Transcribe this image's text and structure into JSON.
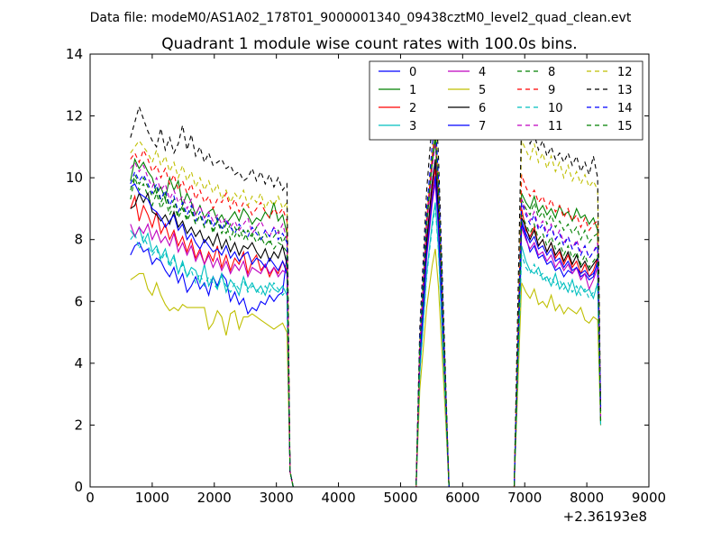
{
  "header": {
    "suptitle": "Data file: modeM0/AS1A02_178T01_9000001340_09438cztM0_level2_quad_clean.evt"
  },
  "chart_data": {
    "type": "line",
    "title": "Quadrant 1 module wise count rates with 100.0s bins.",
    "xlabel": "",
    "ylabel": "",
    "x_offset_label": "+2.36193e8",
    "xlim": [
      0,
      9000
    ],
    "ylim": [
      0,
      14
    ],
    "x_ticks": [
      0,
      1000,
      2000,
      3000,
      4000,
      5000,
      6000,
      7000,
      8000,
      9000
    ],
    "y_ticks": [
      0,
      2,
      4,
      6,
      8,
      10,
      12,
      14
    ],
    "x_tick_labels": [
      "0",
      "1000",
      "2000",
      "3000",
      "4000",
      "5000",
      "6000",
      "7000",
      "8000",
      "9000"
    ],
    "y_tick_labels": [
      "0",
      "2",
      "4",
      "6",
      "8",
      "10",
      "12",
      "14"
    ],
    "grid": false,
    "legend_position": "top-right",
    "legend_columns": 4,
    "series": [
      {
        "name": "0",
        "color": "#0000ff",
        "dash": "solid",
        "seg1": [
          7.5,
          7.8,
          7.9,
          7.6,
          7.7,
          7.2,
          7.4,
          7.3,
          7.0,
          6.8,
          7.1,
          6.6,
          6.9,
          6.3,
          6.5,
          6.8,
          6.4,
          6.6,
          6.2,
          6.8,
          6.5,
          6.9,
          6.7,
          6.0,
          6.3,
          5.9,
          6.1,
          5.6,
          5.8,
          5.7,
          6.0,
          5.9,
          6.2,
          6.0,
          6.2,
          6.3,
          7.5
        ],
        "peak": 10.4,
        "seg2": [
          8.5,
          8.1,
          7.6,
          7.8,
          7.4,
          7.5,
          7.2,
          7.3,
          7.0,
          7.1,
          6.8,
          7.0,
          6.9,
          7.1,
          6.8,
          6.9,
          6.7,
          6.8,
          7.3
        ]
      },
      {
        "name": "1",
        "color": "#008000",
        "dash": "solid",
        "seg1": [
          9.9,
          10.6,
          10.3,
          10.5,
          10.2,
          10.0,
          9.5,
          9.7,
          9.3,
          10.0,
          9.6,
          9.9,
          9.1,
          9.5,
          9.2,
          8.8,
          9.1,
          8.7,
          8.9,
          9.0,
          8.6,
          8.8,
          8.5,
          8.7,
          8.9,
          8.6,
          9.0,
          8.8,
          8.5,
          8.7,
          8.6,
          8.9,
          8.7,
          9.2,
          8.6,
          8.8,
          8.2
        ],
        "peak": 11.2,
        "seg2": [
          9.5,
          9.2,
          9.0,
          9.4,
          8.9,
          9.1,
          8.8,
          9.0,
          8.7,
          9.1,
          8.8,
          8.9,
          8.6,
          9.0,
          8.7,
          8.8,
          8.5,
          8.7,
          8.3
        ]
      },
      {
        "name": "2",
        "color": "#ff0000",
        "dash": "solid",
        "seg1": [
          9.0,
          9.4,
          8.6,
          9.1,
          8.8,
          8.4,
          8.9,
          8.2,
          8.5,
          8.0,
          8.3,
          7.8,
          8.1,
          7.6,
          8.0,
          7.4,
          7.7,
          7.2,
          7.6,
          7.3,
          7.8,
          7.1,
          7.5,
          7.0,
          7.4,
          7.2,
          7.6,
          6.9,
          7.3,
          7.5,
          7.0,
          7.2,
          6.8,
          7.1,
          6.9,
          7.3,
          7.0
        ],
        "peak": 10.2,
        "seg2": [
          9.0,
          8.3,
          8.1,
          8.4,
          7.8,
          8.0,
          7.6,
          7.9,
          7.4,
          7.6,
          7.2,
          7.5,
          7.1,
          7.3,
          6.9,
          7.2,
          6.8,
          7.0,
          7.4
        ]
      },
      {
        "name": "3",
        "color": "#00bfbf",
        "dash": "solid",
        "seg1": [
          8.3,
          8.1,
          8.4,
          7.9,
          8.2,
          7.6,
          7.8,
          7.4,
          7.7,
          7.2,
          7.5,
          6.9,
          7.3,
          6.8,
          7.1,
          7.0,
          6.6,
          7.2,
          6.5,
          6.8,
          6.4,
          6.9,
          6.3,
          6.7,
          6.5,
          6.2,
          6.8,
          6.4,
          6.6,
          6.3,
          6.5,
          6.2,
          6.6,
          6.4,
          6.3,
          6.5,
          6.2
        ],
        "peak": 9.2,
        "seg2": [
          7.8,
          7.3,
          7.0,
          6.9,
          7.1,
          6.7,
          6.8,
          6.5,
          6.9,
          6.4,
          6.6,
          6.3,
          6.7,
          6.2,
          6.5,
          6.3,
          6.4,
          6.1,
          6.6
        ]
      },
      {
        "name": "4",
        "color": "#bf00bf",
        "dash": "solid",
        "seg1": [
          8.5,
          8.1,
          8.4,
          8.2,
          8.5,
          8.0,
          8.3,
          7.9,
          8.1,
          7.8,
          8.2,
          7.6,
          7.9,
          7.5,
          7.8,
          7.3,
          7.6,
          7.2,
          7.5,
          7.1,
          7.4,
          7.0,
          7.3,
          6.9,
          7.2,
          7.0,
          7.3,
          6.8,
          7.1,
          7.0,
          6.9,
          7.2,
          6.9,
          7.1,
          6.8,
          7.0,
          6.9
        ],
        "peak": 9.8,
        "seg2": [
          8.4,
          8.0,
          7.7,
          7.9,
          7.5,
          7.6,
          7.3,
          7.5,
          7.1,
          7.3,
          7.0,
          7.2,
          6.9,
          7.1,
          6.7,
          6.9,
          6.4,
          6.7,
          7.1
        ]
      },
      {
        "name": "5",
        "color": "#bfbf00",
        "dash": "solid",
        "seg1": [
          6.7,
          6.8,
          6.9,
          6.9,
          6.4,
          6.2,
          6.6,
          6.2,
          5.9,
          5.7,
          5.8,
          5.7,
          5.9,
          5.8,
          5.8,
          5.8,
          5.8,
          5.8,
          5.1,
          5.3,
          5.7,
          5.5,
          4.9,
          5.6,
          5.7,
          5.1,
          5.5,
          5.5,
          5.6,
          5.5,
          5.4,
          5.3,
          5.2,
          5.1,
          5.2,
          5.3,
          5.0
        ],
        "peak": 7.6,
        "seg2": [
          6.6,
          6.3,
          6.1,
          6.4,
          5.9,
          6.0,
          5.8,
          6.2,
          5.7,
          5.9,
          5.6,
          5.8,
          5.7,
          5.6,
          5.8,
          5.4,
          5.3,
          5.5,
          5.4
        ]
      },
      {
        "name": "6",
        "color": "#000000",
        "dash": "solid",
        "seg1": [
          9.0,
          9.1,
          9.5,
          9.2,
          9.5,
          8.9,
          8.8,
          8.6,
          8.8,
          8.5,
          8.9,
          8.4,
          8.6,
          8.2,
          8.4,
          8.1,
          8.3,
          7.9,
          8.1,
          7.8,
          8.2,
          7.7,
          8.0,
          7.6,
          7.9,
          7.5,
          7.8,
          7.7,
          7.9,
          7.6,
          7.4,
          7.7,
          7.3,
          7.6,
          7.4,
          7.8,
          7.2
        ],
        "peak": 10.6,
        "seg2": [
          8.7,
          8.4,
          8.0,
          8.3,
          7.8,
          8.0,
          7.6,
          7.9,
          7.5,
          7.7,
          7.3,
          7.6,
          7.2,
          7.5,
          7.1,
          7.3,
          7.0,
          7.2,
          7.4
        ]
      },
      {
        "name": "7",
        "color": "#0000ff",
        "dash": "solid",
        "seg1": [
          9.7,
          9.8,
          9.5,
          9.4,
          9.3,
          9.0,
          8.9,
          8.7,
          8.4,
          8.6,
          8.8,
          8.3,
          8.5,
          8.0,
          8.2,
          7.9,
          7.7,
          8.0,
          7.8,
          7.6,
          7.7,
          7.5,
          7.8,
          7.4,
          7.6,
          7.3,
          7.5,
          7.6,
          7.2,
          7.4,
          7.3,
          7.1,
          7.4,
          7.2,
          7.0,
          7.3,
          6.9
        ],
        "peak": 10.0,
        "seg2": [
          8.6,
          8.2,
          7.9,
          8.1,
          7.7,
          7.8,
          7.5,
          7.7,
          7.3,
          7.4,
          7.1,
          7.3,
          7.0,
          7.1,
          6.9,
          7.0,
          6.8,
          6.9,
          7.2
        ]
      },
      {
        "name": "8",
        "color": "#008000",
        "dash": "dashed",
        "seg1": [
          9.3,
          10.0,
          9.6,
          9.8,
          9.4,
          9.1,
          9.5,
          9.0,
          9.3,
          8.8,
          9.1,
          8.7,
          9.0,
          8.6,
          8.9,
          8.5,
          8.8,
          8.4,
          8.7,
          8.2,
          8.6,
          8.4,
          8.2,
          8.5,
          8.1,
          8.4,
          8.0,
          8.3,
          8.1,
          8.4,
          8.0,
          8.2,
          7.9,
          8.1,
          8.3,
          7.9,
          8.2
        ],
        "peak": 11.2,
        "seg2": [
          9.3,
          9.0,
          8.8,
          9.2,
          8.7,
          8.9,
          8.5,
          8.8,
          8.4,
          8.6,
          8.3,
          8.5,
          8.2,
          8.4,
          8.0,
          8.3,
          7.9,
          8.1,
          8.2
        ]
      },
      {
        "name": "9",
        "color": "#ff0000",
        "dash": "dashed",
        "seg1": [
          10.6,
          10.8,
          10.5,
          10.9,
          10.6,
          10.2,
          10.4,
          10.0,
          10.3,
          9.8,
          10.1,
          9.6,
          9.9,
          9.5,
          9.8,
          9.3,
          9.6,
          9.2,
          9.4,
          9.0,
          9.3,
          9.2,
          9.5,
          9.0,
          9.3,
          8.9,
          9.2,
          9.1,
          8.8,
          9.0,
          9.2,
          8.9,
          8.7,
          9.0,
          8.8,
          9.0,
          8.6
        ],
        "peak": 11.5,
        "seg2": [
          10.1,
          9.7,
          9.4,
          9.6,
          9.2,
          9.4,
          9.0,
          9.3,
          8.9,
          9.1,
          8.7,
          9.0,
          8.6,
          8.8,
          8.4,
          8.7,
          8.3,
          8.5,
          8.6
        ]
      },
      {
        "name": "10",
        "color": "#00bfbf",
        "dash": "dashed",
        "seg1": [
          8.0,
          8.2,
          7.7,
          8.1,
          7.8,
          7.5,
          7.7,
          7.3,
          7.6,
          7.1,
          7.4,
          6.9,
          7.2,
          6.8,
          7.0,
          6.6,
          6.9,
          6.5,
          6.8,
          6.6,
          6.4,
          6.8,
          6.5,
          6.3,
          6.6,
          6.4,
          6.7,
          6.3,
          6.5,
          6.4,
          6.2,
          6.5,
          6.3,
          6.6,
          6.4,
          6.2,
          6.4
        ],
        "peak": 9.0,
        "seg2": [
          7.5,
          7.1,
          6.9,
          7.2,
          6.8,
          6.9,
          6.6,
          6.8,
          6.5,
          6.7,
          6.4,
          6.6,
          6.3,
          6.5,
          6.2,
          6.4,
          6.1,
          6.3,
          6.5
        ]
      },
      {
        "name": "11",
        "color": "#bf00bf",
        "dash": "dashed",
        "seg1": [
          10.3,
          10.5,
          10.2,
          10.4,
          10.0,
          9.7,
          10.0,
          9.6,
          9.8,
          9.3,
          9.6,
          9.2,
          9.4,
          9.0,
          9.3,
          8.8,
          9.1,
          8.7,
          8.9,
          8.6,
          8.8,
          8.5,
          8.7,
          8.4,
          8.6,
          8.3,
          8.5,
          8.7,
          8.2,
          8.4,
          8.6,
          8.3,
          8.1,
          8.4,
          8.2,
          8.5,
          8.0
        ],
        "peak": 11.0,
        "seg2": [
          9.3,
          8.9,
          8.6,
          8.9,
          8.4,
          8.6,
          8.2,
          8.5,
          8.0,
          8.3,
          7.9,
          8.1,
          7.7,
          8.0,
          7.6,
          7.8,
          7.4,
          7.6,
          7.9
        ]
      },
      {
        "name": "12",
        "color": "#bfbf00",
        "dash": "dashed",
        "seg1": [
          10.8,
          11.0,
          11.2,
          11.0,
          10.8,
          10.5,
          10.9,
          10.4,
          10.7,
          10.2,
          10.5,
          10.0,
          10.4,
          9.9,
          10.2,
          9.7,
          10.0,
          9.6,
          9.9,
          9.5,
          9.8,
          9.3,
          9.6,
          9.2,
          9.5,
          9.3,
          9.6,
          9.1,
          9.4,
          9.2,
          9.5,
          9.0,
          9.3,
          9.1,
          9.4,
          9.0,
          9.2
        ],
        "peak": 11.8,
        "seg2": [
          11.2,
          10.9,
          10.6,
          11.1,
          10.5,
          10.8,
          10.3,
          10.7,
          10.2,
          10.5,
          10.0,
          10.4,
          9.9,
          10.2,
          9.8,
          10.1,
          9.7,
          9.9,
          9.6
        ]
      },
      {
        "name": "13",
        "color": "#000000",
        "dash": "dashed",
        "seg1": [
          11.3,
          11.8,
          12.3,
          11.9,
          11.5,
          11.2,
          11.0,
          11.6,
          10.9,
          11.3,
          10.8,
          11.1,
          11.7,
          10.9,
          11.4,
          10.7,
          11.0,
          10.5,
          10.8,
          10.4,
          10.5,
          10.6,
          10.3,
          10.4,
          10.1,
          10.2,
          9.9,
          10.0,
          10.3,
          9.9,
          10.2,
          9.8,
          10.1,
          9.7,
          10.0,
          9.6,
          9.8
        ],
        "peak": 12.7,
        "seg2": [
          12.0,
          11.6,
          11.1,
          11.4,
          10.9,
          11.2,
          10.7,
          11.0,
          10.6,
          10.8,
          10.5,
          10.8,
          10.4,
          10.7,
          10.2,
          10.5,
          10.1,
          10.7,
          10.0
        ]
      },
      {
        "name": "14",
        "color": "#0000ff",
        "dash": "dashed",
        "seg1": [
          9.8,
          10.2,
          9.9,
          10.1,
          9.8,
          9.5,
          9.8,
          9.3,
          9.6,
          9.1,
          9.4,
          8.9,
          9.2,
          8.8,
          9.1,
          8.6,
          8.9,
          8.5,
          8.8,
          8.4,
          8.7,
          8.3,
          8.6,
          8.4,
          8.2,
          8.5,
          8.3,
          8.1,
          8.4,
          8.2,
          8.0,
          8.3,
          8.1,
          8.4,
          8.0,
          8.2,
          7.9
        ],
        "peak": 11.8,
        "seg2": [
          9.2,
          8.8,
          8.5,
          8.8,
          8.3,
          8.5,
          8.1,
          8.4,
          8.0,
          8.2,
          7.8,
          8.1,
          7.7,
          7.9,
          7.5,
          7.8,
          7.4,
          7.6,
          7.8
        ]
      },
      {
        "name": "15",
        "color": "#008000",
        "dash": "dashed",
        "seg1": [
          9.6,
          10.1,
          9.8,
          10.0,
          9.7,
          9.4,
          9.7,
          9.2,
          9.5,
          9.0,
          9.3,
          8.8,
          9.1,
          8.7,
          9.0,
          8.5,
          8.8,
          8.4,
          8.7,
          8.3,
          8.6,
          8.2,
          8.5,
          8.0,
          8.4,
          8.1,
          8.3,
          8.0,
          8.2,
          7.9,
          8.1,
          7.8,
          8.0,
          7.7,
          7.9,
          7.8,
          7.6
        ],
        "peak": 11.4,
        "seg2": [
          8.8,
          8.5,
          8.2,
          8.5,
          8.0,
          8.2,
          7.8,
          8.1,
          7.7,
          7.9,
          7.5,
          7.8,
          7.4,
          7.6,
          7.2,
          7.5,
          7.1,
          7.3,
          7.5
        ]
      }
    ]
  }
}
